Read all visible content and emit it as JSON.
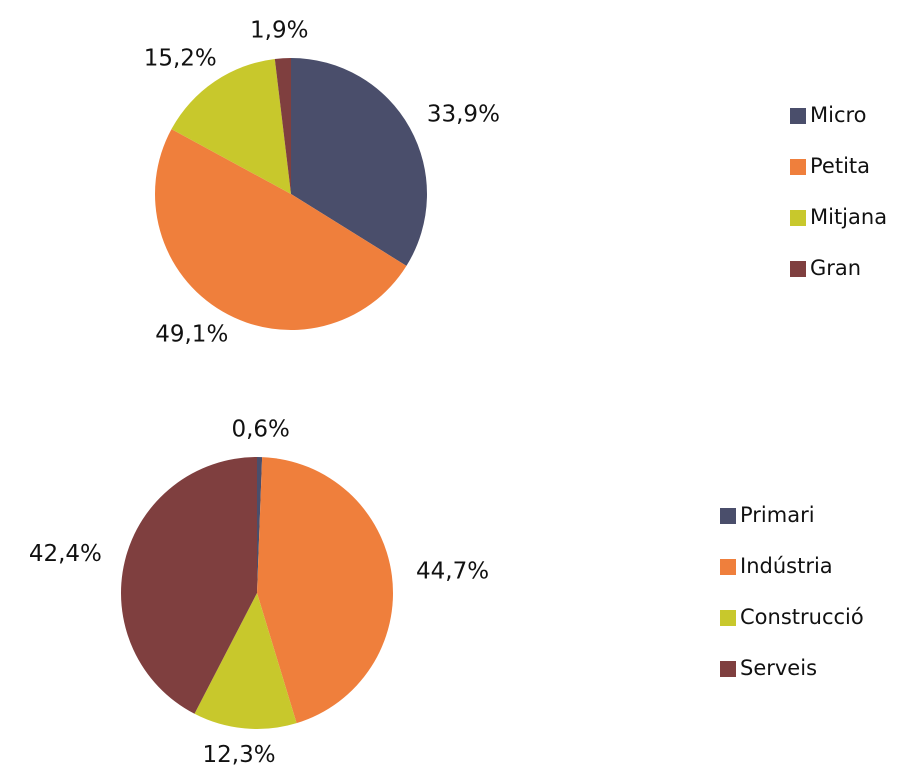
{
  "chart_data": [
    {
      "type": "pie",
      "categories": [
        "Micro",
        "Petita",
        "Mitjana",
        "Gran"
      ],
      "values": [
        33.9,
        49.1,
        15.2,
        1.9
      ],
      "value_labels": [
        "33,9%",
        "49,1%",
        "15,2%",
        "1,9%"
      ],
      "colors": [
        "#4a4e6b",
        "#ef7f3c",
        "#c8c82c",
        "#7f3f3f"
      ],
      "legend": "right"
    },
    {
      "type": "pie",
      "categories": [
        "Primari",
        "Indústria",
        "Construcció",
        "Serveis"
      ],
      "values": [
        0.6,
        44.7,
        12.3,
        42.4
      ],
      "value_labels": [
        "0,6%",
        "44,7%",
        "12,3%",
        "42,4%"
      ],
      "colors": [
        "#4a4e6b",
        "#ef7f3c",
        "#c8c82c",
        "#7f3f3f"
      ],
      "legend": "right"
    }
  ]
}
